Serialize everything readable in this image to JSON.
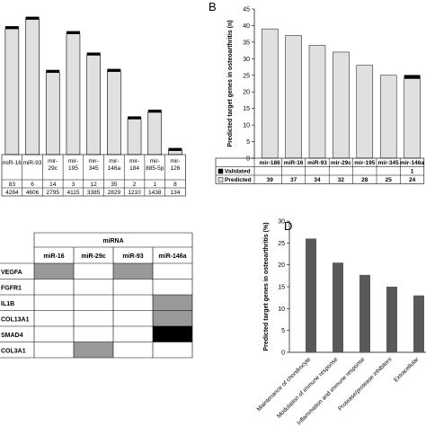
{
  "panels": {
    "B": "B",
    "D": "D"
  },
  "chart_data": [
    {
      "id": "A",
      "type": "bar",
      "categories": [
        "miR-16",
        "miR-93",
        "mir-29c",
        "mir-195",
        "mir-345",
        "mir-146a",
        "mir-184",
        "mir-885-5p",
        "mir-126"
      ],
      "category_display": [
        [
          "miR-16"
        ],
        [
          "miR-93"
        ],
        [
          "mir-",
          "29c"
        ],
        [
          "mir-",
          "195"
        ],
        [
          "mir-",
          "345"
        ],
        [
          "mir-",
          "146a"
        ],
        [
          "mir-",
          "184"
        ],
        [
          "mir-",
          "885-5p"
        ],
        [
          "mir-",
          "126"
        ]
      ],
      "series": [
        {
          "values": [
            83,
            6,
            14,
            3,
            12,
            35,
            2,
            1,
            8
          ],
          "color": "#000000"
        },
        {
          "values": [
            4284,
            4606,
            2795,
            4115,
            3385,
            2829,
            1210,
            1438,
            134
          ],
          "color": "#e0e0e0"
        }
      ],
      "ylim": [
        0,
        4900
      ]
    },
    {
      "id": "B",
      "type": "bar",
      "categories": [
        "mir-186",
        "miR-16",
        "miR-93",
        "mir-29c",
        "mir-195",
        "mir-345",
        "mir-146a"
      ],
      "series": [
        {
          "name": "Validated",
          "values": [
            null,
            null,
            null,
            null,
            null,
            null,
            1
          ],
          "color": "#000000"
        },
        {
          "name": "Predicted",
          "values": [
            39,
            37,
            34,
            32,
            28,
            25,
            24
          ],
          "color": "#e0e0e0"
        }
      ],
      "ylabel": "Predicted target genes in osteoarthritis (n)",
      "yticks": [
        0,
        5,
        10,
        15,
        20,
        25,
        30,
        35,
        40,
        45
      ],
      "ylim": [
        0,
        45
      ],
      "legend": "table-below"
    },
    {
      "id": "C",
      "type": "table",
      "header_group": "miRNA",
      "columns": [
        "miR-16",
        "miR-29c",
        "miR-93",
        "miR-146a"
      ],
      "rows": [
        "VEGFA",
        "FGFR1",
        "IL1B",
        "COL13A1",
        "SMAD4",
        "COL3A1"
      ],
      "cells": [
        [
          "gray",
          "",
          "gray",
          ""
        ],
        [
          "",
          "",
          "",
          ""
        ],
        [
          "",
          "",
          "",
          "gray"
        ],
        [
          "",
          "",
          "",
          "gray"
        ],
        [
          "",
          "",
          "",
          "black"
        ],
        [
          "",
          "gray",
          "",
          ""
        ]
      ]
    },
    {
      "id": "D",
      "type": "bar",
      "categories": [
        "Maintenance of chondrocyte",
        "Modulation of immune response",
        "Inflammation and immune response",
        "Protease/protease inhibitors",
        "Extracellular"
      ],
      "values": [
        26,
        20.5,
        17.7,
        15,
        13
      ],
      "ylabel": "Predicted target genes in osteoarthritis (%)",
      "yticks": [
        0,
        5,
        10,
        15,
        20,
        25,
        30
      ],
      "ylim": [
        0,
        30
      ],
      "color": "#595959"
    }
  ]
}
